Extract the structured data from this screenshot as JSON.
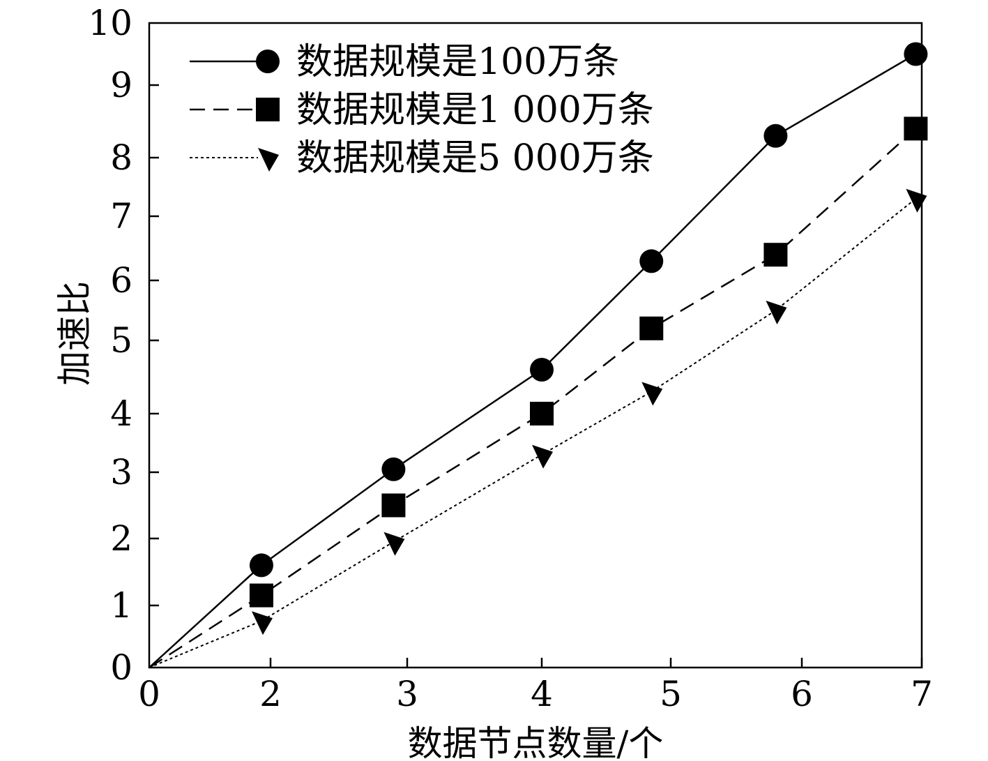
{
  "chart_data": {
    "type": "line",
    "xlabel": "数据节点数量/个",
    "ylabel": "加速比",
    "x_ticks": [
      "0",
      "2",
      "3",
      "4",
      "5",
      "6",
      "7"
    ],
    "y_ticks": [
      "0",
      "1",
      "2",
      "3",
      "4",
      "5",
      "6",
      "7",
      "8",
      "9",
      "10"
    ],
    "xlim": [
      0,
      7
    ],
    "ylim": [
      0,
      10
    ],
    "grid": false,
    "legend_position": "top-left",
    "series": [
      {
        "name": "数据规模是100万条",
        "line_style": "solid",
        "marker": "circle",
        "x": [
          0,
          1.85,
          2.9,
          4.0,
          4.85,
          5.8,
          6.95
        ],
        "y": [
          0,
          1.6,
          3.05,
          4.6,
          6.3,
          8.3,
          9.5
        ]
      },
      {
        "name": "数据规模是1 000万条",
        "line_style": "dashed",
        "marker": "square",
        "x": [
          0,
          1.85,
          2.9,
          4.0,
          4.85,
          5.8,
          6.95
        ],
        "y": [
          0,
          1.15,
          2.5,
          4.0,
          5.2,
          6.4,
          8.4
        ]
      },
      {
        "name": "数据规模是5 000万条",
        "line_style": "dotted",
        "marker": "triangle",
        "x": [
          0,
          1.85,
          2.9,
          4.0,
          4.85,
          5.8,
          6.95
        ],
        "y": [
          0,
          0.75,
          1.95,
          3.3,
          4.3,
          5.5,
          7.3
        ]
      }
    ]
  }
}
